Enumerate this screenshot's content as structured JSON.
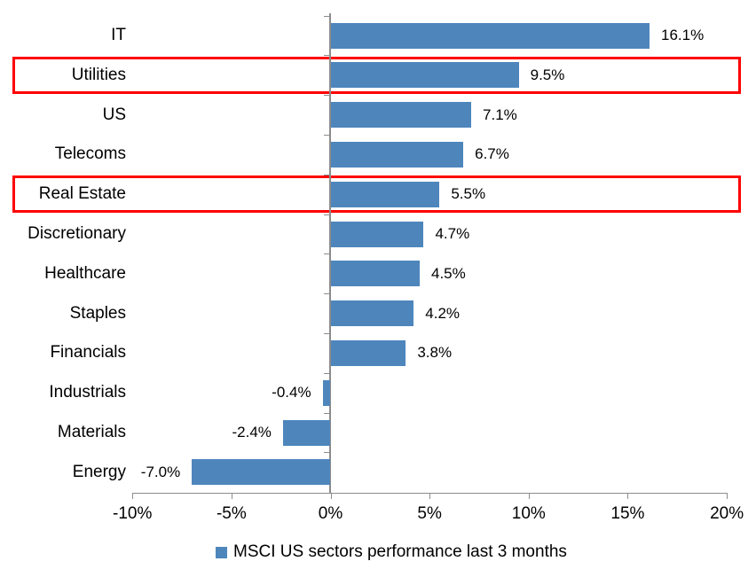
{
  "chart_data": {
    "type": "bar",
    "orientation": "horizontal",
    "title": "",
    "categories": [
      "IT",
      "Utilities",
      "US",
      "Telecoms",
      "Real Estate",
      "Discretionary",
      "Healthcare",
      "Staples",
      "Financials",
      "Industrials",
      "Materials",
      "Energy"
    ],
    "values": [
      16.1,
      9.5,
      7.1,
      6.7,
      5.5,
      4.7,
      4.5,
      4.2,
      3.8,
      -0.4,
      -2.4,
      -7.0
    ],
    "value_labels": [
      "16.1%",
      "9.5%",
      "7.1%",
      "6.7%",
      "5.5%",
      "4.7%",
      "4.5%",
      "4.2%",
      "3.8%",
      "-0.4%",
      "-2.4%",
      "-7.0%"
    ],
    "highlighted_categories": [
      "Utilities",
      "Real Estate"
    ],
    "x_tick_values": [
      -10,
      -5,
      0,
      5,
      10,
      15,
      20
    ],
    "x_tick_labels": [
      "-10%",
      "-5%",
      "0%",
      "5%",
      "10%",
      "15%",
      "20%"
    ],
    "xlim": [
      -10,
      20
    ],
    "grid": false,
    "legend": "MSCI US sectors performance last 3 months",
    "legend_position": "bottom",
    "colors": {
      "bar": "#4E86BC",
      "highlight_box": "#FF0000",
      "axis": "#8C8C8C",
      "text": "#000000"
    }
  }
}
